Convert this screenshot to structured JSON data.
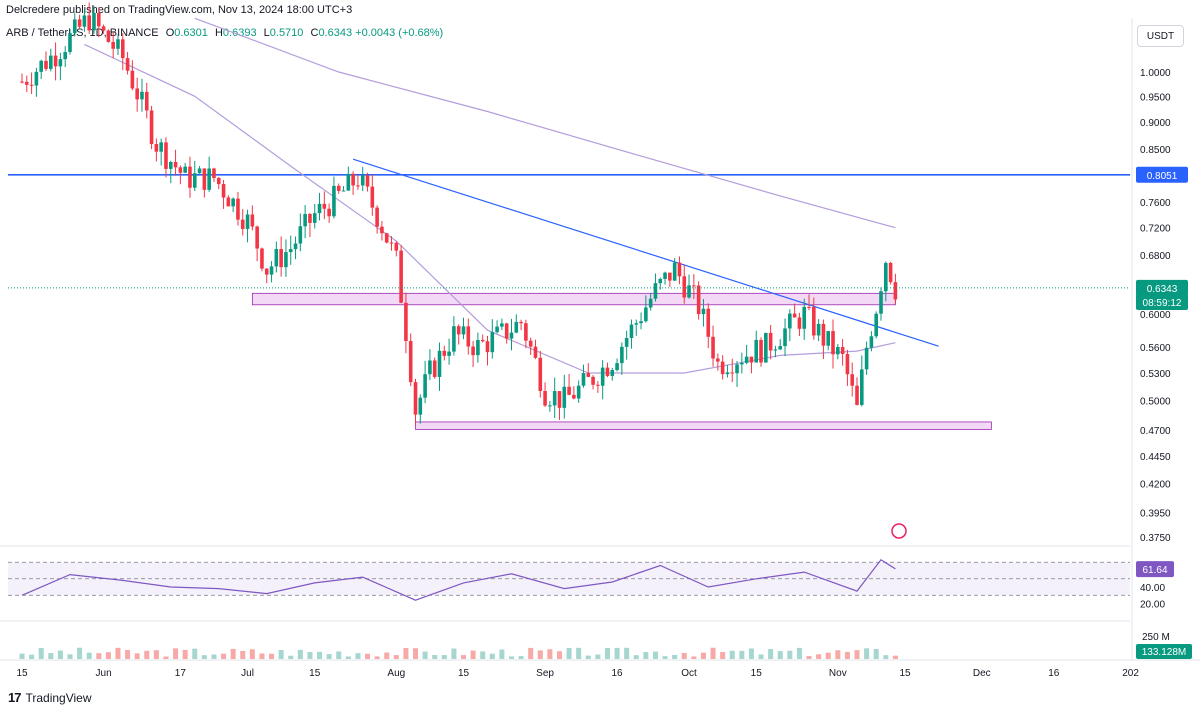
{
  "header": {
    "published": "Delcredere published on TradingView.com, Nov 13, 2024 18:00 UTC+3"
  },
  "legend": {
    "symbol": "ARB / TetherUS, 1D, BINANCE",
    "open_label": "O",
    "open": "0.6301",
    "high_label": "H",
    "high": "0.6393",
    "low_label": "L",
    "low": "0.5710",
    "close_label": "C",
    "close": "0.6343",
    "change": "+0.0043 (+0.68%)"
  },
  "currency": "USDT",
  "footer": {
    "brand": "TradingView"
  },
  "colors": {
    "up": "#089981",
    "down": "#f23645",
    "hline": "#2962ff",
    "zone_fill": "#f3d9f6",
    "zone_stroke": "#9c27b0",
    "ma": "#b39ddb",
    "rsi": "#7e57c2",
    "trend": "#2962ff"
  },
  "chart_data": {
    "type": "candlestick",
    "price_axis": {
      "ticks": [
        "1.0000",
        "0.9500",
        "0.9000",
        "0.8500",
        "0.7600",
        "0.7200",
        "0.6800",
        "0.6000",
        "0.5600",
        "0.5300",
        "0.5000",
        "0.4700",
        "0.4450",
        "0.4200",
        "0.3950",
        "0.3750"
      ],
      "tick_values": [
        1.0,
        0.95,
        0.9,
        0.85,
        0.76,
        0.72,
        0.68,
        0.6,
        0.56,
        0.53,
        0.5,
        0.47,
        0.445,
        0.42,
        0.395,
        0.375
      ],
      "scale": "log"
    },
    "time_axis": {
      "labels": [
        "15",
        "Jun",
        "17",
        "Jul",
        "15",
        "Aug",
        "15",
        "Sep",
        "16",
        "Oct",
        "15",
        "Nov",
        "15",
        "Dec",
        "16",
        "202"
      ],
      "dates": [
        "2024-05-15",
        "2024-06-01",
        "2024-06-17",
        "2024-07-01",
        "2024-07-15",
        "2024-08-01",
        "2024-08-15",
        "2024-09-01",
        "2024-09-16",
        "2024-10-01",
        "2024-10-15",
        "2024-11-01",
        "2024-11-15",
        "2024-12-01",
        "2024-12-16",
        "2025-01-01"
      ]
    },
    "badges": [
      {
        "label": "0.8051",
        "value": 0.8051,
        "color": "#2962ff"
      },
      {
        "label": "0.6343",
        "value": 0.6343,
        "color": "#089981"
      },
      {
        "label": "08:59:12",
        "value": 0.6235,
        "color": "#089981"
      }
    ],
    "horizontal_line": {
      "value": 0.8051
    },
    "zones": [
      {
        "from": "2024-07-02",
        "to": "2024-11-13",
        "low": 0.612,
        "high": 0.627
      },
      {
        "from": "2024-08-05",
        "to": "2024-12-03",
        "low": 0.4705,
        "high": 0.478
      }
    ],
    "trendline": {
      "start": {
        "date": "2024-07-23",
        "value": 0.832
      },
      "end": {
        "date": "2024-11-22",
        "value": 0.5608
      }
    },
    "close_series": {
      "dates": [
        "2024-05-15",
        "2024-05-22",
        "2024-05-29",
        "2024-06-05",
        "2024-06-12",
        "2024-06-18",
        "2024-06-24",
        "2024-07-01",
        "2024-07-05",
        "2024-07-10",
        "2024-07-15",
        "2024-07-20",
        "2024-07-24",
        "2024-07-28",
        "2024-08-01",
        "2024-08-05",
        "2024-08-08",
        "2024-08-13",
        "2024-08-18",
        "2024-08-23",
        "2024-08-27",
        "2024-09-01",
        "2024-09-05",
        "2024-09-10",
        "2024-09-15",
        "2024-09-20",
        "2024-09-24",
        "2024-09-28",
        "2024-10-03",
        "2024-10-07",
        "2024-10-12",
        "2024-10-17",
        "2024-10-21",
        "2024-10-25",
        "2024-10-29",
        "2024-11-02",
        "2024-11-05",
        "2024-11-07",
        "2024-11-09",
        "2024-11-11",
        "2024-11-13"
      ],
      "values": [
        0.98,
        1.04,
        1.12,
        1.03,
        0.86,
        0.8,
        0.8,
        0.73,
        0.66,
        0.69,
        0.74,
        0.77,
        0.8,
        0.74,
        0.67,
        0.49,
        0.53,
        0.575,
        0.56,
        0.575,
        0.59,
        0.51,
        0.5,
        0.52,
        0.545,
        0.59,
        0.63,
        0.66,
        0.61,
        0.54,
        0.55,
        0.56,
        0.58,
        0.6,
        0.57,
        0.545,
        0.49,
        0.56,
        0.61,
        0.675,
        0.6343
      ]
    },
    "ma_fast": {
      "dates": [
        "2024-05-28",
        "2024-06-20",
        "2024-07-10",
        "2024-08-01",
        "2024-08-20",
        "2024-09-10",
        "2024-09-30",
        "2024-10-20",
        "2024-11-05",
        "2024-11-13"
      ],
      "values": [
        1.06,
        0.95,
        0.82,
        0.7,
        0.58,
        0.53,
        0.53,
        0.55,
        0.555,
        0.565
      ]
    },
    "ma_slow": {
      "dates": [
        "2024-06-20",
        "2024-07-20",
        "2024-08-20",
        "2024-09-20",
        "2024-10-20",
        "2024-11-13"
      ],
      "values": [
        1.12,
        1.0,
        0.92,
        0.84,
        0.77,
        0.72
      ]
    },
    "rsi": {
      "value_label": "61.64",
      "value": 61.64,
      "axis_labels": [
        "40.00",
        "20.00"
      ],
      "axis_values": [
        40,
        20
      ],
      "band": [
        30,
        70
      ],
      "dates": [
        "2024-05-15",
        "2024-05-25",
        "2024-06-05",
        "2024-06-15",
        "2024-06-25",
        "2024-07-05",
        "2024-07-15",
        "2024-07-25",
        "2024-08-05",
        "2024-08-15",
        "2024-08-25",
        "2024-09-05",
        "2024-09-15",
        "2024-09-25",
        "2024-10-05",
        "2024-10-15",
        "2024-10-25",
        "2024-11-05",
        "2024-11-10",
        "2024-11-13"
      ],
      "values": [
        30,
        55,
        48,
        40,
        38,
        32,
        45,
        52,
        24,
        45,
        56,
        38,
        46,
        66,
        40,
        50,
        58,
        35,
        73,
        62
      ]
    },
    "volume": {
      "axis_label": "250 M",
      "axis_value": 250,
      "value_label": "133.128M",
      "value": 133.128,
      "unit": "M"
    }
  }
}
